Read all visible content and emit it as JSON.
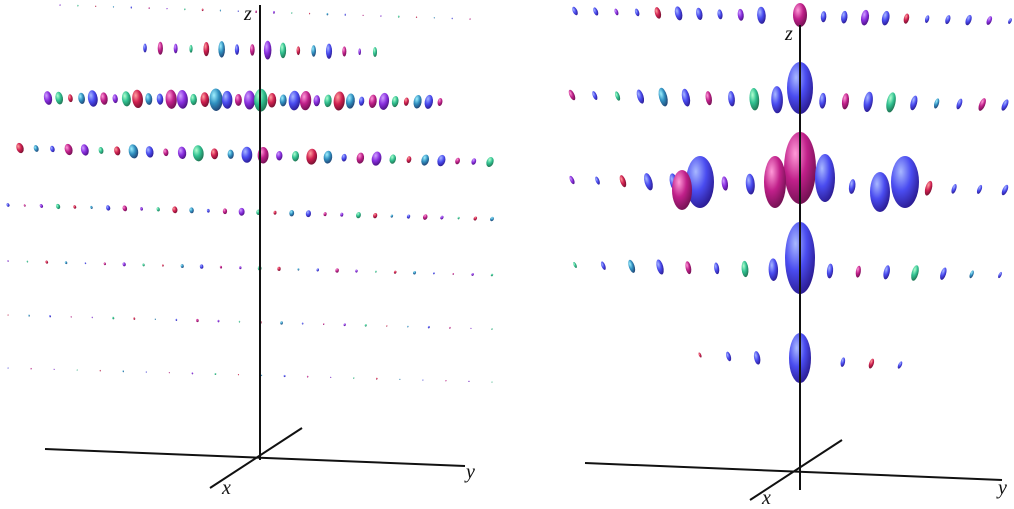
{
  "panels": [
    {
      "axes": {
        "x": "x",
        "y": "y",
        "z": "z"
      }
    },
    {
      "axes": {
        "x": "x",
        "y": "y",
        "z": "z"
      }
    }
  ]
}
